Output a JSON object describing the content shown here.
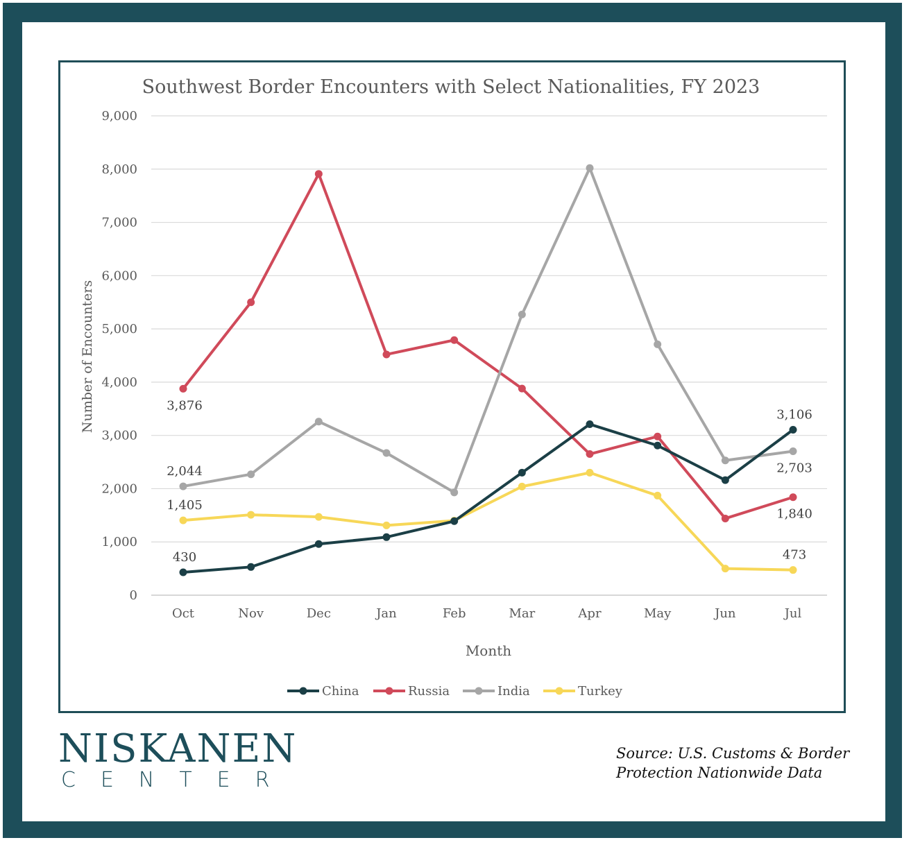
{
  "branding": {
    "logo_main": "NISKANEN",
    "logo_sub": "CENTER",
    "source_line1": "Source: U.S. Customs & Border",
    "source_line2": "Protection Nationwide Data"
  },
  "colors": {
    "frame": "#1d4e5a",
    "China": "#1b3f46",
    "Russia": "#d04a5a",
    "India": "#a6a6a6",
    "Turkey": "#f7d758",
    "grid": "#d9d9d9",
    "text": "#595959"
  },
  "chart_data": {
    "type": "line",
    "title": "Southwest Border Encounters with Select Nationalities, FY 2023",
    "xlabel": "Month",
    "ylabel": "Number of Encounters",
    "ylim": [
      0,
      9000
    ],
    "yticks": [
      0,
      1000,
      2000,
      3000,
      4000,
      5000,
      6000,
      7000,
      8000,
      9000
    ],
    "ytick_labels": [
      "0",
      "1,000",
      "2,000",
      "3,000",
      "4,000",
      "5,000",
      "6,000",
      "7,000",
      "8,000",
      "9,000"
    ],
    "categories": [
      "Oct",
      "Nov",
      "Dec",
      "Jan",
      "Feb",
      "Mar",
      "Apr",
      "May",
      "Jun",
      "Jul"
    ],
    "grid": true,
    "legend_position": "bottom",
    "series": [
      {
        "name": "China",
        "values": [
          430,
          530,
          960,
          1090,
          1390,
          2300,
          3210,
          2810,
          2160,
          3106
        ]
      },
      {
        "name": "Russia",
        "values": [
          3876,
          5500,
          7910,
          4520,
          4790,
          3880,
          2650,
          2980,
          1440,
          1840
        ]
      },
      {
        "name": "India",
        "values": [
          2044,
          2270,
          3260,
          2670,
          1930,
          5270,
          8020,
          4710,
          2530,
          2703
        ]
      },
      {
        "name": "Turkey",
        "values": [
          1405,
          1510,
          1470,
          1310,
          1400,
          2040,
          2300,
          1870,
          500,
          473
        ]
      }
    ],
    "annotations": [
      {
        "series": "Russia",
        "index": 0,
        "text": "3,876",
        "pos": "below"
      },
      {
        "series": "India",
        "index": 0,
        "text": "2,044",
        "pos": "above"
      },
      {
        "series": "Turkey",
        "index": 0,
        "text": "1,405",
        "pos": "above"
      },
      {
        "series": "China",
        "index": 0,
        "text": "430",
        "pos": "above"
      },
      {
        "series": "China",
        "index": 9,
        "text": "3,106",
        "pos": "above"
      },
      {
        "series": "India",
        "index": 9,
        "text": "2,703",
        "pos": "below"
      },
      {
        "series": "Russia",
        "index": 9,
        "text": "1,840",
        "pos": "below"
      },
      {
        "series": "Turkey",
        "index": 9,
        "text": "473",
        "pos": "above"
      }
    ]
  }
}
